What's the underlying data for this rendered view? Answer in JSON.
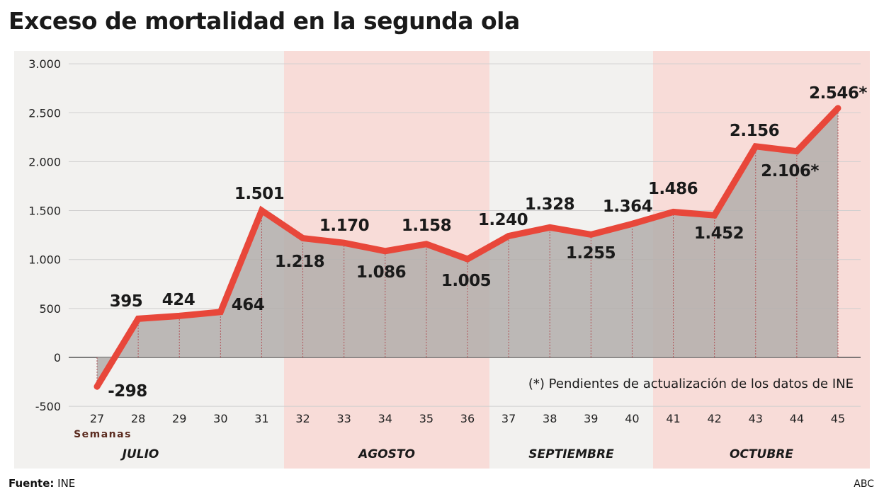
{
  "title": "Exceso de mortalidad en la segunda ola",
  "source_label": "Fuente:",
  "source_value": "INE",
  "brand": "ABC",
  "colors": {
    "line": "#e8473a",
    "area": "#b3aeab",
    "band_gray": "#f2f1ef",
    "band_pink": "#f8dcd8"
  },
  "chart_data": {
    "type": "area",
    "xlabel": "Semanas",
    "ylim": [
      -500,
      3000
    ],
    "yticks": [
      3000,
      2500,
      2000,
      1500,
      1000,
      500,
      0,
      -500
    ],
    "ytick_labels": [
      "3.000",
      "2.500",
      "2.000",
      "1.500",
      "1.000",
      "500",
      "0",
      "-500"
    ],
    "grid": true,
    "x": [
      27,
      28,
      29,
      30,
      31,
      32,
      33,
      34,
      35,
      36,
      37,
      38,
      39,
      40,
      41,
      42,
      43,
      44,
      45
    ],
    "values": [
      -298,
      395,
      424,
      464,
      1501,
      1218,
      1170,
      1086,
      1158,
      1005,
      1240,
      1328,
      1255,
      1364,
      1486,
      1452,
      2156,
      2106,
      2546
    ],
    "data_labels": [
      "-298",
      "395",
      "424",
      "464",
      "1.501",
      "1.218",
      "1.170",
      "1.086",
      "1.158",
      "1.005",
      "1.240",
      "1.328",
      "1.255",
      "1.364",
      "1.486",
      "1.452",
      "2.156",
      "2.106*",
      "2.546*"
    ],
    "months": [
      {
        "name": "JULIO",
        "weeks": [
          27,
          31
        ],
        "shade": "gray"
      },
      {
        "name": "AGOSTO",
        "weeks": [
          32,
          36
        ],
        "shade": "pink"
      },
      {
        "name": "SEPTIEMBRE",
        "weeks": [
          37,
          40
        ],
        "shade": "gray"
      },
      {
        "name": "OCTUBRE",
        "weeks": [
          41,
          45
        ],
        "shade": "pink"
      }
    ],
    "annotation": "(*) Pendientes de actualización de los datos de INE"
  }
}
